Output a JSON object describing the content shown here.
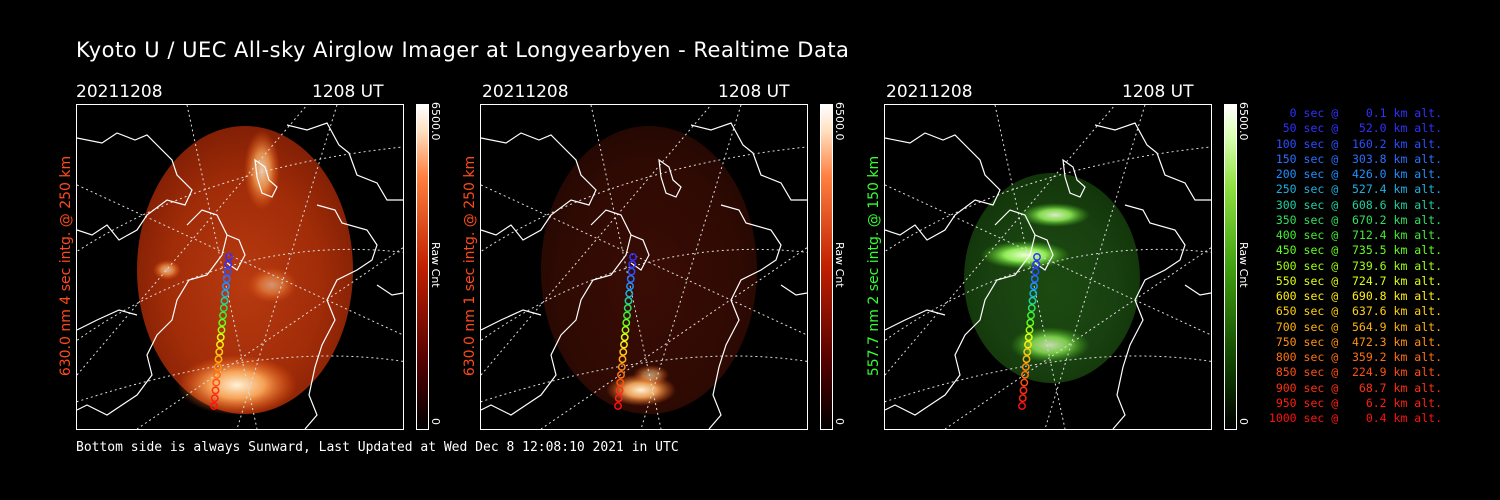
{
  "title": "Kyoto U / UEC All-sky Airglow Imager at Longyearbyen - Realtime Data",
  "footer": "Bottom side is always Sunward, Last Updated at Wed Dec  8 12:08:10 2021 in UTC",
  "panels": [
    {
      "date": "20211208",
      "time": "1208 UT",
      "label": "630.0 nm 4 sec intg. @ 250 km",
      "label_color": "#ff4a1a",
      "cbar_max": "6500.0",
      "cbar_min": "0",
      "cbar_unit": "Raw Cnt",
      "colormap": "red",
      "intensity": "bright"
    },
    {
      "date": "20211208",
      "time": "1208 UT",
      "label": "630.0 nm 1 sec intg. @ 250 km",
      "label_color": "#ff4a1a",
      "cbar_max": "6500.0",
      "cbar_min": "0",
      "cbar_unit": "Raw Cnt",
      "colormap": "red",
      "intensity": "dim"
    },
    {
      "date": "20211208",
      "time": "1208 UT",
      "label": "557.7 nm 2 sec intg. @ 150 km",
      "label_color": "#33ff33",
      "cbar_max": "6500.0",
      "cbar_min": "0",
      "cbar_unit": "Raw Cnt",
      "colormap": "green",
      "intensity": "bright"
    }
  ],
  "legend": [
    {
      "text": "0 sec @    0.1 km alt.",
      "color": "#3030ff"
    },
    {
      "text": "50 sec @   52.0 km alt.",
      "color": "#3030ff"
    },
    {
      "text": "100 sec @  160.2 km alt.",
      "color": "#2a50ff"
    },
    {
      "text": "150 sec @  303.8 km alt.",
      "color": "#2a70ff"
    },
    {
      "text": "200 sec @  426.0 km alt.",
      "color": "#2090ff"
    },
    {
      "text": "250 sec @  527.4 km alt.",
      "color": "#20b0e0"
    },
    {
      "text": "300 sec @  608.6 km alt.",
      "color": "#20d0a0"
    },
    {
      "text": "350 sec @  670.2 km alt.",
      "color": "#30e060"
    },
    {
      "text": "400 sec @  712.4 km alt.",
      "color": "#40ee30"
    },
    {
      "text": "450 sec @  735.5 km alt.",
      "color": "#60ff20"
    },
    {
      "text": "500 sec @  739.6 km alt.",
      "color": "#a0ff10"
    },
    {
      "text": "550 sec @  724.7 km alt.",
      "color": "#e0ff10"
    },
    {
      "text": "600 sec @  690.8 km alt.",
      "color": "#ffee10"
    },
    {
      "text": "650 sec @  637.6 km alt.",
      "color": "#ffd010"
    },
    {
      "text": "700 sec @  564.9 km alt.",
      "color": "#ffb010"
    },
    {
      "text": "750 sec @  472.3 km alt.",
      "color": "#ff9010"
    },
    {
      "text": "800 sec @  359.2 km alt.",
      "color": "#ff7010"
    },
    {
      "text": "850 sec @  224.9 km alt.",
      "color": "#ff5010"
    },
    {
      "text": "900 sec @   68.7 km alt.",
      "color": "#ff3010"
    },
    {
      "text": "950 sec @    6.2 km alt.",
      "color": "#ff2010"
    },
    {
      "text": "1000 sec @    0.4 km alt.",
      "color": "#ff1010"
    }
  ]
}
